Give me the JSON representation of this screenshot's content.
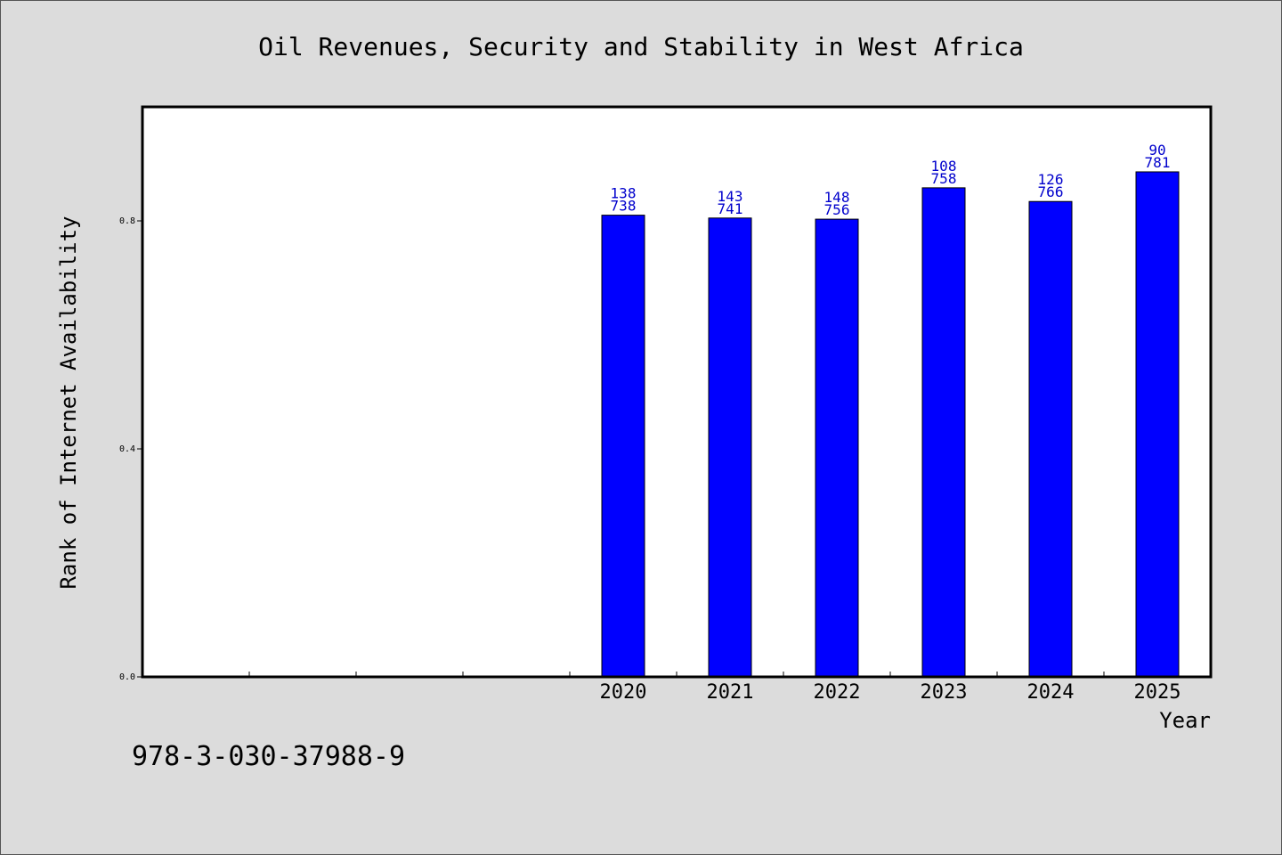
{
  "colors": {
    "bar": "#0000ff",
    "bar_outline": "#000000",
    "label": "#0000cc",
    "background": "#dcdcdc",
    "plot_background": "#ffffff"
  },
  "footer": {
    "text": "978-3-030-37988-9"
  },
  "chart_data": {
    "type": "bar",
    "title": "Oil Revenues, Security and Stability in West Africa",
    "xlabel": "Year",
    "ylabel": "Rank of Internet Availability",
    "categories": [
      "",
      "",
      "",
      "",
      "2020",
      "2021",
      "2022",
      "2023",
      "2024",
      "2025"
    ],
    "values": [
      null,
      null,
      null,
      null,
      0.81,
      0.805,
      0.803,
      0.858,
      0.834,
      0.886
    ],
    "bar_labels": [
      [
        "",
        ""
      ],
      [
        "",
        ""
      ],
      [
        "",
        ""
      ],
      [
        "",
        ""
      ],
      [
        "138",
        "738"
      ],
      [
        "143",
        "741"
      ],
      [
        "148",
        "756"
      ],
      [
        "108",
        "758"
      ],
      [
        "126",
        "766"
      ],
      [
        "90",
        "781"
      ]
    ],
    "yticks": [
      0.0,
      0.4,
      0.8
    ],
    "ytick_labels": [
      "0.0",
      "0.4",
      "0.8"
    ],
    "ylim": [
      0,
      1.0
    ],
    "grid": false,
    "legend": "none"
  }
}
